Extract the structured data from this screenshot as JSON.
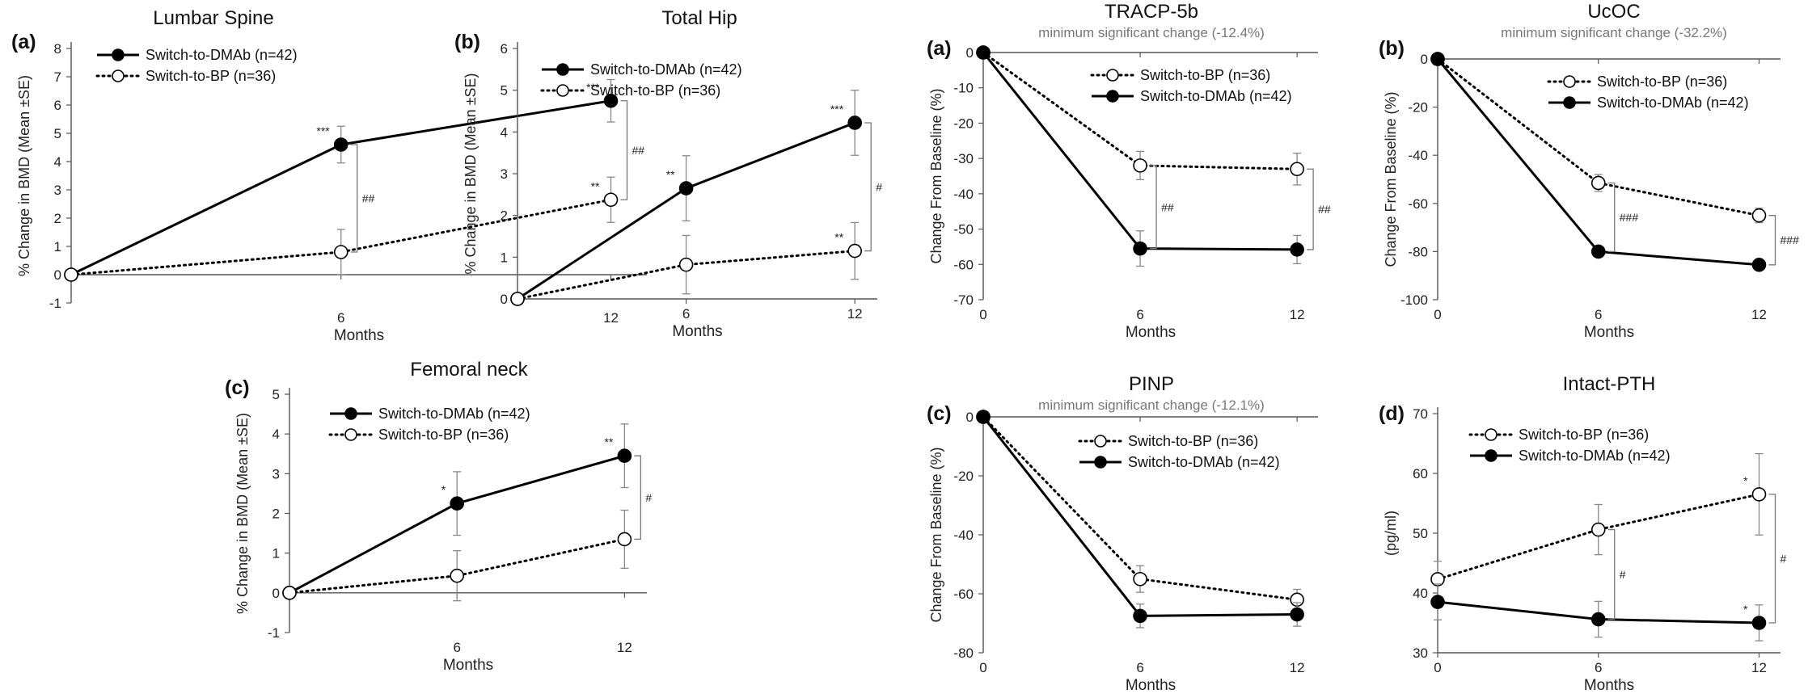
{
  "chart_data": [
    {
      "id": "lumbar",
      "type": "line",
      "panel_label": "(a)",
      "title": "Lumbar Spine",
      "subtitle": "",
      "xlabel": "Months",
      "ylabel": "% Change in BMD (Mean ±SE)",
      "x": [
        0,
        6,
        12
      ],
      "xticks": [
        6,
        12
      ],
      "xlim": [
        0,
        12.8
      ],
      "ylim": [
        -1,
        8
      ],
      "yticks": [
        -1,
        0,
        1,
        2,
        3,
        4,
        5,
        6,
        7,
        8
      ],
      "legend_position": "top-left",
      "series": [
        {
          "name": "Switch-to-DMAb (n=42)",
          "marker": "filled",
          "line": "solid",
          "values": [
            0,
            4.6,
            6.15
          ],
          "err": [
            0,
            0.65,
            0.75
          ],
          "stars": [
            "",
            "***",
            "***"
          ]
        },
        {
          "name": "Switch-to-BP (n=36)",
          "marker": "open",
          "line": "dotted",
          "values": [
            0,
            0.8,
            2.65
          ],
          "err": [
            0,
            0.8,
            0.8
          ],
          "stars": [
            "",
            "",
            "**"
          ]
        }
      ],
      "significance": [
        {
          "x": 6,
          "label": "##"
        },
        {
          "x": 12,
          "label": "##"
        }
      ]
    },
    {
      "id": "totalhip",
      "type": "line",
      "panel_label": "(b)",
      "title": "Total Hip",
      "subtitle": "",
      "xlabel": "Months",
      "ylabel": "% Change in BMD (Mean ±SE)",
      "x": [
        0,
        6,
        12
      ],
      "xticks": [
        6,
        12
      ],
      "xlim": [
        0,
        12.8
      ],
      "ylim": [
        0,
        6
      ],
      "yticks": [
        0,
        1,
        2,
        3,
        4,
        5,
        6
      ],
      "legend_position": "top-left",
      "series": [
        {
          "name": "Switch-to-DMAb (n=42)",
          "marker": "filled",
          "line": "solid",
          "values": [
            0,
            2.65,
            4.22
          ],
          "err": [
            0,
            0.78,
            0.78
          ],
          "stars": [
            "",
            "**",
            "***"
          ]
        },
        {
          "name": "Switch-to-BP (n=36)",
          "marker": "open",
          "line": "dotted",
          "values": [
            0,
            0.82,
            1.15
          ],
          "err": [
            0,
            0.7,
            0.68
          ],
          "stars": [
            "",
            "",
            "**"
          ]
        }
      ],
      "significance": [
        {
          "x": 12,
          "label": "#"
        }
      ]
    },
    {
      "id": "femoral",
      "type": "line",
      "panel_label": "(c)",
      "title": "Femoral neck",
      "subtitle": "",
      "xlabel": "Months",
      "ylabel": "% Change in BMD (Mean ±SE)",
      "x": [
        0,
        6,
        12
      ],
      "xticks": [
        6,
        12
      ],
      "xlim": [
        0,
        12.8
      ],
      "ylim": [
        -1,
        5
      ],
      "yticks": [
        -1,
        0,
        1,
        2,
        3,
        4,
        5
      ],
      "legend_position": "top-left",
      "series": [
        {
          "name": "Switch-to-DMAb (n=42)",
          "marker": "filled",
          "line": "solid",
          "values": [
            0,
            2.25,
            3.45
          ],
          "err": [
            0,
            0.8,
            0.8
          ],
          "stars": [
            "",
            "*",
            "**"
          ]
        },
        {
          "name": "Switch-to-BP (n=36)",
          "marker": "open",
          "line": "dotted",
          "values": [
            0,
            0.43,
            1.35
          ],
          "err": [
            0,
            0.63,
            0.73
          ],
          "stars": [
            "",
            "",
            ""
          ]
        }
      ],
      "significance": [
        {
          "x": 12,
          "label": "#"
        }
      ]
    },
    {
      "id": "tracp",
      "type": "line",
      "panel_label": "(a)",
      "title": "TRACP-5b",
      "subtitle": "minimum significant change (-12.4%)",
      "xlabel": "Months",
      "ylabel": "Change From Baseline (%)",
      "x": [
        0,
        6,
        12
      ],
      "xticks": [
        0,
        6,
        12
      ],
      "xlim": [
        0,
        12.8
      ],
      "ylim": [
        -70,
        0
      ],
      "yticks": [
        -70,
        -60,
        -50,
        -40,
        -30,
        -20,
        -10,
        0
      ],
      "legend_position": "top-right",
      "series": [
        {
          "name": "Switch-to-BP (n=36)",
          "marker": "open",
          "line": "dotted",
          "values": [
            0,
            -32,
            -33
          ],
          "err": [
            0,
            4,
            4.5
          ],
          "stars": [
            "",
            "",
            ""
          ]
        },
        {
          "name": "Switch-to-DMAb (n=42)",
          "marker": "filled",
          "line": "solid",
          "values": [
            0,
            -55.5,
            -55.8
          ],
          "err": [
            0,
            5,
            4
          ],
          "stars": [
            "",
            "",
            ""
          ]
        }
      ],
      "significance": [
        {
          "x": 6,
          "label": "##"
        },
        {
          "x": 12,
          "label": "##"
        }
      ]
    },
    {
      "id": "ucoc",
      "type": "line",
      "panel_label": "(b)",
      "title": "UcOC",
      "subtitle": "minimum significant change (-32.2%)",
      "xlabel": "Months",
      "ylabel": "Change From Baseline (%)",
      "x": [
        0,
        6,
        12
      ],
      "xticks": [
        0,
        6,
        12
      ],
      "xlim": [
        0,
        12.8
      ],
      "ylim": [
        -100,
        0
      ],
      "yticks": [
        -100,
        -80,
        -60,
        -40,
        -20,
        0
      ],
      "legend_position": "top-right",
      "series": [
        {
          "name": "Switch-to-BP (n=36)",
          "marker": "open",
          "line": "dotted",
          "values": [
            0,
            -51.5,
            -65
          ],
          "err": [
            0,
            3.5,
            3
          ],
          "stars": [
            "",
            "",
            ""
          ]
        },
        {
          "name": "Switch-to-DMAb (n=42)",
          "marker": "filled",
          "line": "solid",
          "values": [
            0,
            -80,
            -85.5
          ],
          "err": [
            0,
            1.5,
            1.2
          ],
          "stars": [
            "",
            "",
            ""
          ]
        }
      ],
      "significance": [
        {
          "x": 6,
          "label": "###"
        },
        {
          "x": 12,
          "label": "###"
        }
      ]
    },
    {
      "id": "pinp",
      "type": "line",
      "panel_label": "(c)",
      "title": "PINP",
      "subtitle": "minimum significant change (-12.1%)",
      "xlabel": "Months",
      "ylabel": "Change From Baseline (%)",
      "x": [
        0,
        6,
        12
      ],
      "xticks": [
        0,
        6,
        12
      ],
      "xlim": [
        0,
        12.8
      ],
      "ylim": [
        -80,
        0
      ],
      "yticks": [
        -80,
        -60,
        -40,
        -20,
        0
      ],
      "legend_position": "top-right",
      "series": [
        {
          "name": "Switch-to-BP (n=36)",
          "marker": "open",
          "line": "dotted",
          "values": [
            0,
            -55,
            -62
          ],
          "err": [
            0,
            4.5,
            3.5
          ],
          "stars": [
            "",
            "",
            ""
          ]
        },
        {
          "name": "Switch-to-DMAb (n=42)",
          "marker": "filled",
          "line": "solid",
          "values": [
            0,
            -67.5,
            -67
          ],
          "err": [
            0,
            4,
            4
          ],
          "stars": [
            "",
            "",
            ""
          ]
        }
      ],
      "significance": []
    },
    {
      "id": "pth",
      "type": "line",
      "panel_label": "(d)",
      "title": "Intact-PTH",
      "subtitle": "",
      "xlabel": "Months",
      "ylabel": "(pg/ml)",
      "x": [
        0,
        6,
        12
      ],
      "xticks": [
        0,
        6,
        12
      ],
      "xlim": [
        0,
        12.8
      ],
      "ylim": [
        30,
        70
      ],
      "yticks": [
        30,
        40,
        50,
        60,
        70
      ],
      "legend_position": "top-left",
      "series": [
        {
          "name": "Switch-to-BP (n=36)",
          "marker": "open",
          "line": "dotted",
          "values": [
            42.3,
            50.6,
            56.5
          ],
          "err": [
            3,
            4.2,
            6.8
          ],
          "stars": [
            "",
            "",
            "*"
          ]
        },
        {
          "name": "Switch-to-DMAb (n=42)",
          "marker": "filled",
          "line": "solid",
          "values": [
            38.5,
            35.6,
            35
          ],
          "err": [
            3,
            3,
            3
          ],
          "stars": [
            "",
            "",
            "*"
          ]
        }
      ],
      "significance": [
        {
          "x": 6,
          "label": "#"
        },
        {
          "x": 12,
          "label": "#"
        }
      ]
    }
  ]
}
